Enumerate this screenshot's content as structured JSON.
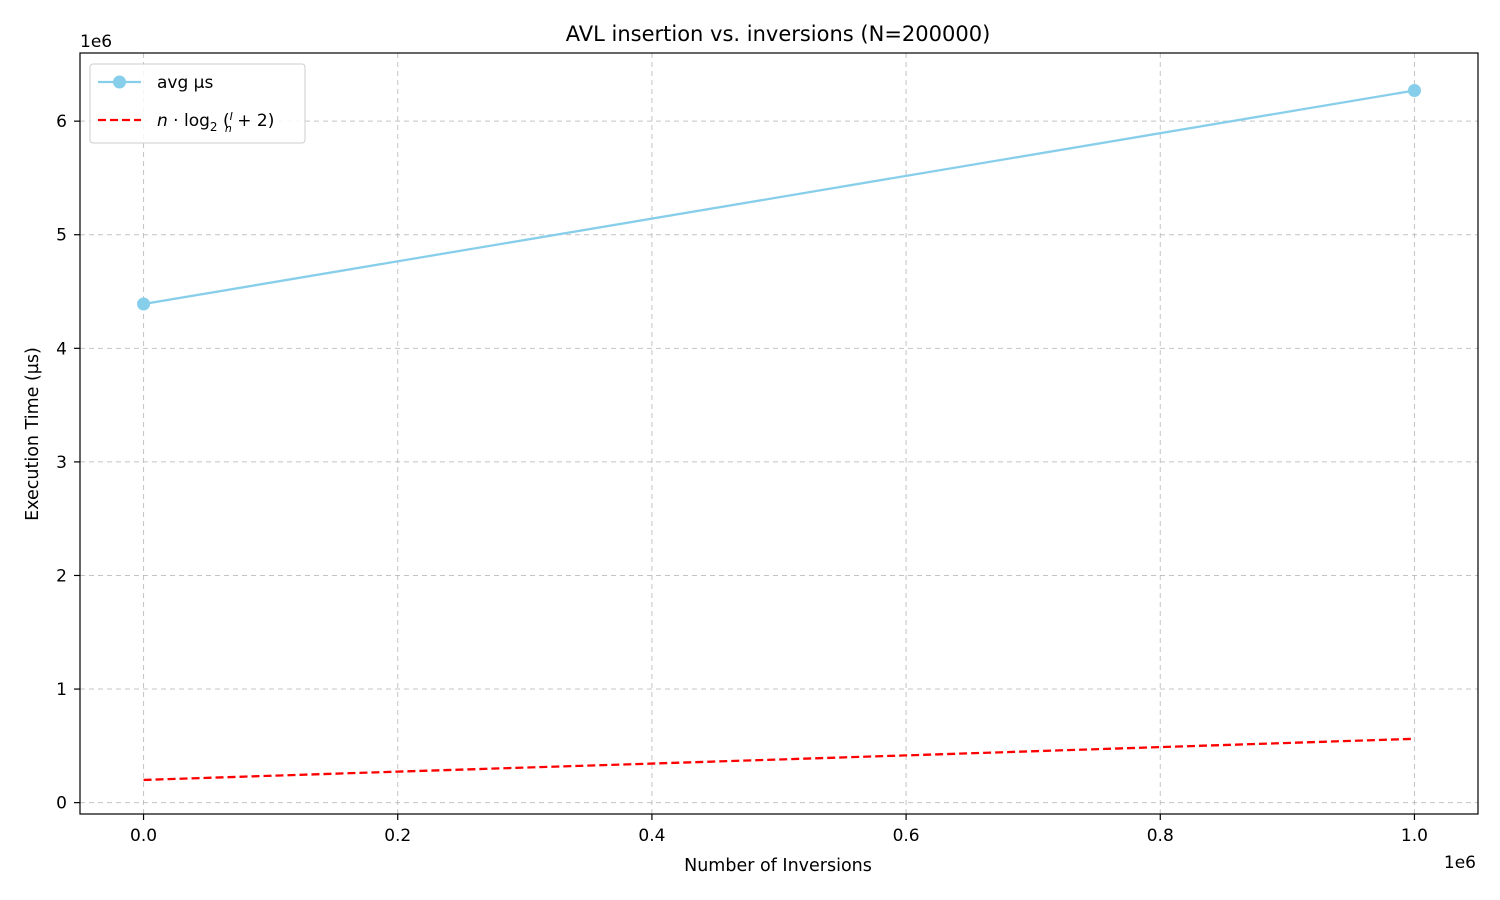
{
  "chart_data": {
    "type": "line",
    "title": "AVL insertion vs. inversions (N=200000)",
    "xlabel": "Number of Inversions",
    "ylabel": "Execution Time (µs)",
    "x_offset_label": "1e6",
    "y_offset_label": "1e6",
    "xlim": [
      -50000,
      1050000
    ],
    "ylim": [
      -100000,
      6600000
    ],
    "x_ticks": [
      0,
      200000,
      400000,
      600000,
      800000,
      1000000
    ],
    "x_tick_labels": [
      "0.0",
      "0.2",
      "0.4",
      "0.6",
      "0.8",
      "1.0"
    ],
    "y_ticks": [
      0,
      1000000,
      2000000,
      3000000,
      4000000,
      5000000,
      6000000
    ],
    "y_tick_labels": [
      "0",
      "1",
      "2",
      "3",
      "4",
      "5",
      "6"
    ],
    "grid": true,
    "legend_position": "top-left",
    "series": [
      {
        "name": "avg µs",
        "color": "#87ceeb",
        "style": "solid",
        "marker": "circle",
        "x": [
          0,
          1000000
        ],
        "y": [
          4390000,
          6270000
        ]
      },
      {
        "name": "n · log2(I/n + 2)",
        "color": "#ff0000",
        "style": "dashed",
        "marker": "none",
        "x": [
          0,
          200000,
          400000,
          600000,
          800000,
          1000000
        ],
        "y": [
          200000,
          273000,
          344000,
          416000,
          489000,
          562000
        ]
      }
    ]
  }
}
